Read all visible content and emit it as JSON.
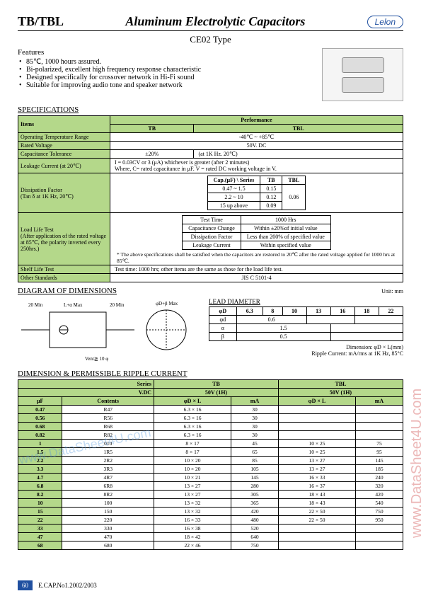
{
  "header": {
    "left": "TB/TBL",
    "title": "Aluminum Electrolytic Capacitors",
    "logo": "Lelon"
  },
  "subtype": "CE02 Type",
  "features": {
    "title": "Features",
    "items": [
      "85℃, 1000 hours assured.",
      "Bi-polarized, excellent high frequency response characteristic",
      "Designed specifically for crossover network in Hi-Fi sound",
      "Suitable for improving audio tone and speaker network"
    ]
  },
  "spec_title": "SPECIFICATIONS",
  "spec": {
    "items_label": "Items",
    "perf_label": "Performance",
    "tb": "TB",
    "tbl": "TBL",
    "rows": [
      {
        "item": "Operating Temperature Range",
        "val": "-40℃ ~ +85℃",
        "colspan": 2
      },
      {
        "item": "Rated Voltage",
        "val": "50V.   DC",
        "colspan": 2
      },
      {
        "item": "Capacitance Tolerance",
        "val": "±20%",
        "note": "(at 1K Hz. 20℃)",
        "colspan": 2
      }
    ],
    "leakage": {
      "item": "Leakage Current (at 20℃)",
      "text": "I = 0.03CV or 3 (μA) whichever is greater (after 2 minutes)\nWhere, C= rated capacitance in μF.    V = rated DC working voltage in V."
    },
    "dissipation": {
      "item": "Dissipation Factor\n(Tan δ at 1K Hz, 20℃)",
      "series": "Series",
      "cap": "Cap.(μF)",
      "rows": [
        {
          "cap": "0.47 ~ 1.5",
          "tb": "0.15",
          "tbl": "0.06"
        },
        {
          "cap": "2.2 ~ 10",
          "tb": "0.12",
          "tbl": ""
        },
        {
          "cap": "15 up above",
          "tb": "0.09",
          "tbl": ""
        }
      ]
    },
    "loadlife": {
      "item": "Load Life Test\n(After application of the rated voltage at 85℃, the polarity inverted every 250hrs.)",
      "rows": [
        [
          "Test Time",
          "1000 Hrs"
        ],
        [
          "Capacitance Change",
          "Within ±20%of initial value"
        ],
        [
          "Dissipation Factor",
          "Less than 200% of specified value"
        ],
        [
          "Leakage Current",
          "Within specified value"
        ]
      ],
      "note": "* The above specifications shall be satisfied when the capacitors are restored to 20℃ after the rated voltage applied for 1000 hrs at 85℃."
    },
    "shelf": {
      "item": "Shelf Life Test",
      "val": "Test time: 1000 hrs; other items are the same as those for the load life test."
    },
    "other": {
      "item": "Other Standards",
      "val": "JIS C 5101-4"
    }
  },
  "dim_title": "DIAGRAM OF DIMENSIONS",
  "dim_unit": "Unit: mm",
  "dim_labels": {
    "a": "20 Min",
    "b": "L+α Max",
    "c": "20 Min",
    "d": "φD+β Max",
    "vent": "Vent≧ 10 φ"
  },
  "lead": {
    "title": "LEAD DIAMETER",
    "headers": [
      "φD",
      "6.3",
      "8",
      "10",
      "13",
      "16",
      "18",
      "22"
    ],
    "rows": [
      [
        "φd",
        "0.6",
        "",
        "",
        "0.8",
        "",
        "1.0"
      ],
      [
        "α",
        "1.5",
        "",
        "",
        "2.0",
        "",
        ""
      ],
      [
        "β",
        "0.5",
        "",
        "",
        "1.0",
        "",
        ""
      ]
    ],
    "dim_note": "Dimension: φD × L(mm)",
    "ripple_note": "Ripple Current: mA/rms at 1K Hz, 85°C"
  },
  "ripple_title": "DIMENSION & PERMISSIBLE RIPPLE CURRENT",
  "ripple": {
    "series": "Series",
    "vdc": "V.DC",
    "tb50": "50V (1H)",
    "tbl50": "50V (1H)",
    "uf": "μF",
    "contents": "Contents",
    "phiDL": "φD × L",
    "ma": "mA",
    "rows": [
      {
        "uf": "0.47",
        "c": "R47",
        "tb_d": "6.3 × 16",
        "tb_ma": "30",
        "tbl_d": "",
        "tbl_ma": ""
      },
      {
        "uf": "0.56",
        "c": "R56",
        "tb_d": "6.3 × 16",
        "tb_ma": "30",
        "tbl_d": "",
        "tbl_ma": ""
      },
      {
        "uf": "0.68",
        "c": "R68",
        "tb_d": "6.3 × 16",
        "tb_ma": "30",
        "tbl_d": "",
        "tbl_ma": ""
      },
      {
        "uf": "0.82",
        "c": "R82",
        "tb_d": "6.3 × 16",
        "tb_ma": "30",
        "tbl_d": "",
        "tbl_ma": ""
      },
      {
        "uf": "1",
        "c": "010",
        "tb_d": "8 × 17",
        "tb_ma": "45",
        "tbl_d": "10 × 25",
        "tbl_ma": "75"
      },
      {
        "uf": "1.5",
        "c": "1R5",
        "tb_d": "8 × 17",
        "tb_ma": "65",
        "tbl_d": "10 × 25",
        "tbl_ma": "95"
      },
      {
        "uf": "2.2",
        "c": "2R2",
        "tb_d": "10 × 20",
        "tb_ma": "85",
        "tbl_d": "13 × 27",
        "tbl_ma": "145"
      },
      {
        "uf": "3.3",
        "c": "3R3",
        "tb_d": "10 × 20",
        "tb_ma": "105",
        "tbl_d": "13 × 27",
        "tbl_ma": "185"
      },
      {
        "uf": "4.7",
        "c": "4R7",
        "tb_d": "10 × 21",
        "tb_ma": "145",
        "tbl_d": "16 × 33",
        "tbl_ma": "240"
      },
      {
        "uf": "6.8",
        "c": "6R8",
        "tb_d": "13 × 27",
        "tb_ma": "280",
        "tbl_d": "16 × 37",
        "tbl_ma": "320"
      },
      {
        "uf": "8.2",
        "c": "8R2",
        "tb_d": "13 × 27",
        "tb_ma": "305",
        "tbl_d": "18 × 43",
        "tbl_ma": "420"
      },
      {
        "uf": "10",
        "c": "100",
        "tb_d": "13 × 32",
        "tb_ma": "365",
        "tbl_d": "18 × 43",
        "tbl_ma": "540"
      },
      {
        "uf": "15",
        "c": "150",
        "tb_d": "13 × 32",
        "tb_ma": "420",
        "tbl_d": "22 × 50",
        "tbl_ma": "750"
      },
      {
        "uf": "22",
        "c": "220",
        "tb_d": "16 × 33",
        "tb_ma": "480",
        "tbl_d": "22 × 50",
        "tbl_ma": "950"
      },
      {
        "uf": "33",
        "c": "330",
        "tb_d": "16 × 38",
        "tb_ma": "520",
        "tbl_d": "",
        "tbl_ma": ""
      },
      {
        "uf": "47",
        "c": "470",
        "tb_d": "18 × 42",
        "tb_ma": "640",
        "tbl_d": "",
        "tbl_ma": ""
      },
      {
        "uf": "68",
        "c": "680",
        "tb_d": "22 × 46",
        "tb_ma": "750",
        "tbl_d": "",
        "tbl_ma": ""
      }
    ]
  },
  "footer": {
    "page": "60",
    "doc": "E.CAP.No1.2002/2003"
  },
  "watermarks": {
    "right": "www.DataSheet4U.com",
    "left": "www.DataSheet4U.com"
  },
  "colors": {
    "header_green": "#b4d88a",
    "logo_blue": "#2050a0"
  }
}
